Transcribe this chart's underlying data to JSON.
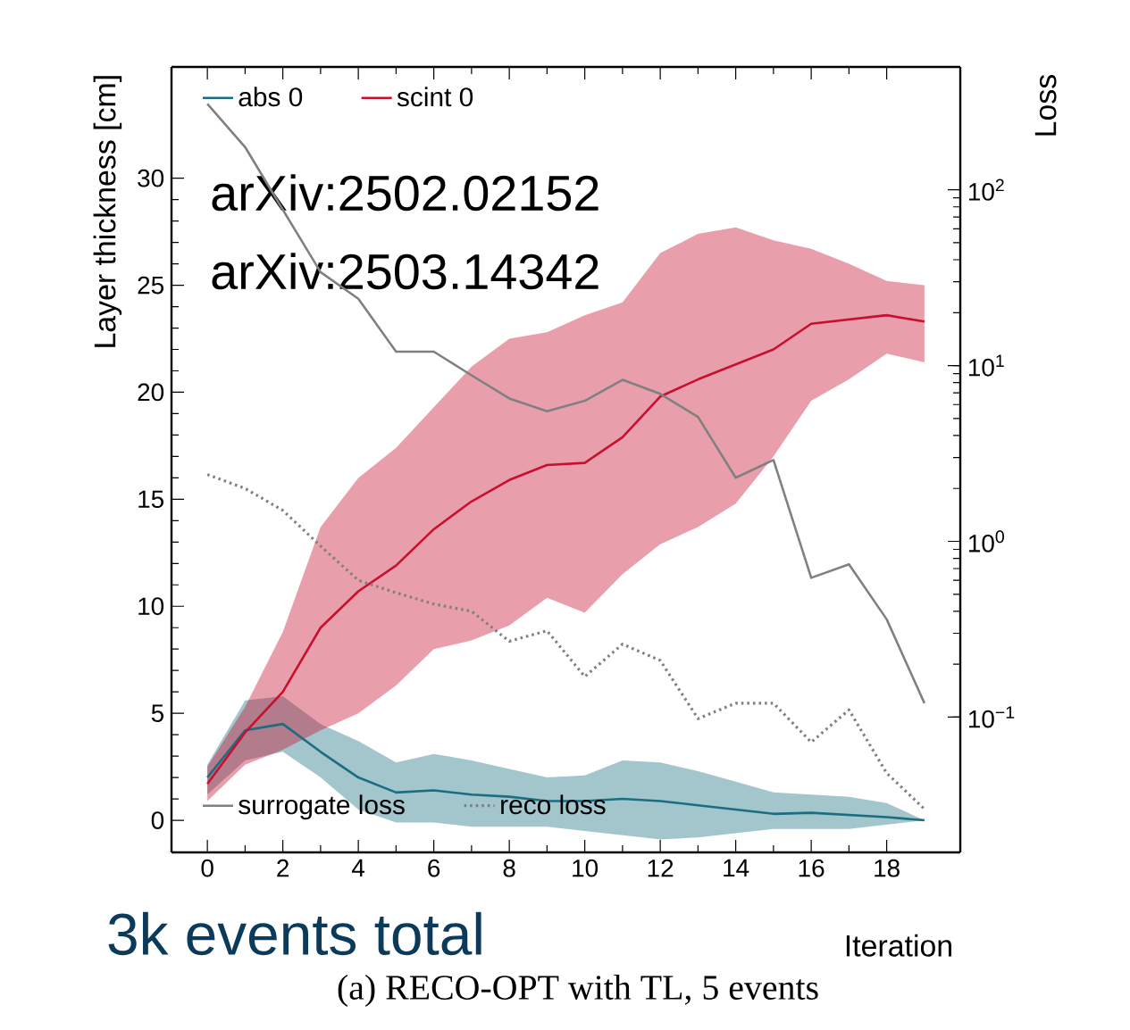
{
  "chart_data": {
    "type": "line",
    "xlabel": "Iteration",
    "ylabel": "Layer thickness [cm]",
    "y2label": "Loss",
    "x": [
      0,
      1,
      2,
      3,
      4,
      5,
      6,
      7,
      8,
      9,
      10,
      11,
      12,
      13,
      14,
      15,
      16,
      17,
      18,
      19
    ],
    "xlim": [
      -0.95,
      19.95
    ],
    "xticks": [
      0,
      2,
      4,
      6,
      8,
      10,
      12,
      14,
      16,
      18
    ],
    "ylim": [
      -1.5,
      35.2
    ],
    "yticks": [
      0,
      5,
      10,
      15,
      20,
      25,
      30
    ],
    "y2lim": [
      0.017,
      500
    ],
    "y2ticks": [
      {
        "value": 0.1,
        "label": "10$^{−1}$"
      },
      {
        "value": 1,
        "label": "10$^{0}$"
      },
      {
        "value": 10,
        "label": "10$^{1}$"
      },
      {
        "value": 100,
        "label": "10$^{2}$"
      }
    ],
    "log": "y2",
    "grid": false,
    "legend": "top left",
    "marker": "none",
    "series": [
      {
        "name": "abs 0",
        "color": "#1a6e80",
        "values": [
          2.0,
          4.2,
          4.5,
          3.2,
          2.0,
          1.3,
          1.4,
          1.2,
          1.1,
          0.9,
          0.9,
          1.0,
          0.9,
          0.7,
          0.5,
          0.3,
          0.35,
          0.25,
          0.15,
          0.0
        ],
        "lower": [
          1.2,
          2.8,
          3.2,
          2.0,
          0.5,
          -0.1,
          -0.1,
          -0.3,
          -0.3,
          -0.3,
          -0.5,
          -0.7,
          -0.9,
          -0.8,
          -0.6,
          -0.4,
          -0.4,
          -0.4,
          -0.2,
          0.0
        ],
        "upper": [
          2.6,
          5.6,
          5.8,
          4.5,
          3.7,
          2.7,
          3.1,
          2.8,
          2.4,
          2.0,
          2.1,
          2.8,
          2.7,
          2.3,
          1.8,
          1.3,
          1.2,
          1.1,
          0.8,
          0.0
        ]
      },
      {
        "name": "scint 0",
        "color": "#c8102e",
        "values": [
          1.7,
          4.1,
          6.0,
          9.0,
          10.7,
          11.9,
          13.6,
          14.9,
          15.9,
          16.6,
          16.7,
          17.9,
          19.8,
          20.6,
          21.3,
          22.0,
          23.2,
          23.4,
          23.6,
          23.3
        ],
        "lower": [
          0.9,
          2.6,
          3.3,
          4.2,
          5.0,
          6.3,
          8.0,
          8.4,
          9.1,
          10.4,
          9.7,
          11.5,
          12.9,
          13.7,
          14.8,
          17.0,
          19.6,
          20.6,
          21.8,
          21.4
        ],
        "upper": [
          2.5,
          5.3,
          8.8,
          13.7,
          16.0,
          17.4,
          19.3,
          21.2,
          22.5,
          22.8,
          23.6,
          24.2,
          26.5,
          27.4,
          27.7,
          27.1,
          26.7,
          26.0,
          25.2,
          25.0
        ]
      },
      {
        "name": "surrogate loss",
        "color": "#808080",
        "axis": "y2",
        "line_style": "solid",
        "values": [
          308,
          175,
          77,
          34,
          24,
          12,
          12,
          8.8,
          6.5,
          5.5,
          6.3,
          8.3,
          6.9,
          5.1,
          2.3,
          2.9,
          0.62,
          0.74,
          0.36,
          0.12
        ]
      },
      {
        "name": "reco loss",
        "color": "#808080",
        "axis": "y2",
        "line_style": "dotted",
        "values": [
          2.4,
          2.0,
          1.5,
          0.94,
          0.6,
          0.51,
          0.44,
          0.4,
          0.27,
          0.31,
          0.17,
          0.26,
          0.21,
          0.098,
          0.12,
          0.12,
          0.072,
          0.11,
          0.048,
          0.03
        ]
      }
    ],
    "annotations": [
      "arXiv:2502.02152",
      "arXiv:2503.14342",
      "3k events total",
      "(a) RECO-OPT with TL, 5 events"
    ]
  }
}
